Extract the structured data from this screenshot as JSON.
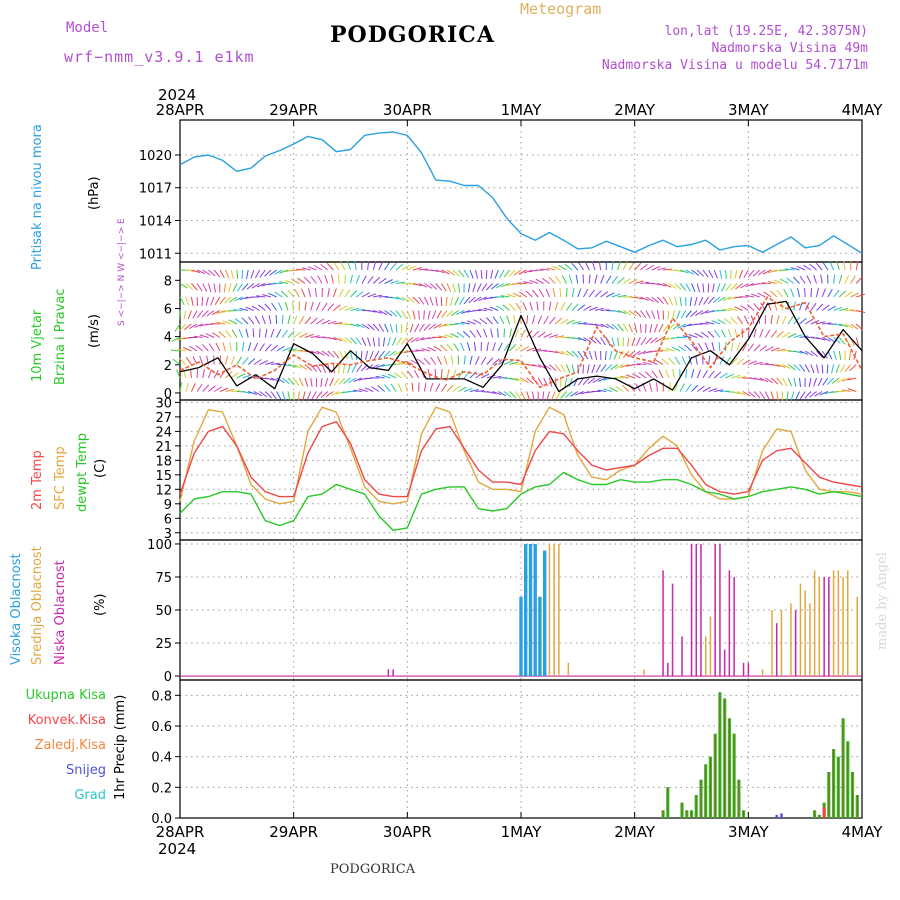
{
  "header": {
    "model_label": "Model",
    "model_name": "wrf−nmm_v3.9.1  e1km",
    "station": "PODGORICA",
    "meteogram": "Meteogram",
    "lonlat": "lon,lat (19.25E, 42.3875N)",
    "elev": "Nadmorska Visina 49m",
    "elev_model": "Nadmorska Visina u modelu 54.7171m",
    "footer_station": "PODGORICA",
    "watermark": "made by Angel"
  },
  "colors": {
    "pressure": "#29a0e0",
    "temp2m": "#f04848",
    "sfc": "#e0a840",
    "dewpt": "#28c828",
    "high_cloud": "#29a0e0",
    "mid_cloud": "#e0a840",
    "low_cloud": "#c828a8",
    "precip_total": "#28c828",
    "precip_conv": "#f04848",
    "zaledj": "#f08840",
    "snijeg": "#5050e0",
    "grad": "#28c8c8",
    "wind_speed": "#f06030",
    "wind_gust": "#000000"
  },
  "axes": {
    "year_top": "2024",
    "year_bottom": "2024",
    "date_labels": [
      "28APR",
      "29APR",
      "30APR",
      "1MAY",
      "2MAY",
      "3MAY",
      "4MAY"
    ]
  },
  "panels": {
    "pressure": {
      "label": "Pritisak na nivou mora",
      "unit": "(hPa)"
    },
    "wind": {
      "label1": "10m Vjetar",
      "label2": "Brzina i Pravac",
      "unit": "(m/s)",
      "compass": "S <−|−> N  W <−|−> E"
    },
    "temp": {
      "label1": "2m Temp",
      "label2": "SFC Temp",
      "label3": "dewpt Temp",
      "unit": "(C)"
    },
    "cloud": {
      "label1": "Visoka Oblacnost",
      "label2": "Srednja Oblacnost",
      "label3": "Niska Oblacnost",
      "unit": "(%)"
    },
    "precip": {
      "labels": [
        "Ukupna Kisa",
        "Konvek.Kisa",
        "Zaledj.Kisa",
        "Snijeg",
        "Grad"
      ],
      "unit": "1hr Precip (mm)"
    }
  },
  "chart_data": [
    {
      "type": "line",
      "title": "",
      "ylabel": "Pritisak na nivou mora (hPa)",
      "ylim": [
        1010.2,
        1023.2
      ],
      "yticks": [
        1011,
        1014,
        1017,
        1020
      ],
      "x_hours": [
        0,
        3,
        6,
        9,
        12,
        15,
        18,
        21,
        24,
        27,
        30,
        33,
        36,
        39,
        42,
        45,
        48,
        51,
        54,
        57,
        60,
        63,
        66,
        69,
        72,
        75,
        78,
        81,
        84,
        87,
        90,
        93,
        96,
        99,
        102,
        105,
        108,
        111,
        114,
        117,
        120,
        123,
        126,
        129,
        132,
        135,
        138,
        141,
        144
      ],
      "series": [
        {
          "name": "Pritisak na nivou mora",
          "values": [
            1019.1,
            1019.8,
            1020.0,
            1019.5,
            1018.5,
            1018.8,
            1019.9,
            1020.4,
            1021.0,
            1021.7,
            1021.4,
            1020.3,
            1020.5,
            1021.8,
            1022.0,
            1022.1,
            1021.8,
            1020.2,
            1017.7,
            1017.6,
            1017.2,
            1017.2,
            1016.1,
            1014.2,
            1012.8,
            1012.2,
            1012.9,
            1012.2,
            1011.4,
            1011.5,
            1012.1,
            1011.6,
            1011.1,
            1011.7,
            1012.2,
            1011.6,
            1011.8,
            1012.2,
            1011.3,
            1011.6,
            1011.7,
            1011.1,
            1011.8,
            1012.5,
            1011.5,
            1011.7,
            1012.6,
            1011.8,
            1011.0
          ]
        }
      ]
    },
    {
      "type": "line",
      "title": "",
      "ylabel": "10m Vjetar Brzina i Pravac (m/s)",
      "ylim": [
        -0.5,
        9.3
      ],
      "yticks": [
        0,
        2,
        4,
        6,
        8
      ],
      "x_hours": [
        0,
        4,
        8,
        12,
        16,
        20,
        24,
        28,
        32,
        36,
        40,
        44,
        48,
        52,
        56,
        60,
        64,
        68,
        72,
        76,
        80,
        84,
        88,
        92,
        96,
        100,
        104,
        108,
        112,
        116,
        120,
        124,
        128,
        132,
        136,
        140,
        144
      ],
      "series": [
        {
          "name": "speed",
          "values": [
            1.6,
            2.2,
            1.3,
            2.0,
            1.0,
            1.6,
            2.7,
            1.9,
            2.1,
            2.0,
            2.3,
            2.5,
            2.1,
            1.4,
            0.9,
            1.5,
            1.3,
            2.4,
            2.3,
            0.4,
            1.0,
            1.5,
            4.7,
            3.0,
            2.5,
            2.2,
            5.3,
            3.7,
            1.8,
            3.6,
            4.6,
            6.8,
            6.0,
            6.4,
            4.0,
            4.2,
            1.6
          ]
        },
        {
          "name": "gust",
          "values": [
            1.5,
            1.8,
            2.5,
            0.5,
            1.3,
            0.3,
            3.5,
            2.8,
            1.5,
            3.0,
            1.8,
            1.6,
            3.5,
            1.0,
            1.0,
            1.0,
            0.4,
            2.0,
            5.5,
            2.5,
            0.1,
            1.0,
            1.2,
            1.0,
            0.3,
            1.0,
            0.2,
            2.5,
            3.0,
            2.0,
            3.8,
            6.3,
            6.5,
            4.0,
            2.5,
            4.5,
            3.0
          ]
        }
      ]
    },
    {
      "type": "line",
      "title": "",
      "ylabel": "Temp (C)",
      "ylim": [
        1.5,
        30.5
      ],
      "yticks": [
        3,
        6,
        9,
        12,
        15,
        18,
        21,
        24,
        27,
        30
      ],
      "x_hours": [
        0,
        3,
        6,
        9,
        12,
        15,
        18,
        21,
        24,
        27,
        30,
        33,
        36,
        39,
        42,
        45,
        48,
        51,
        54,
        57,
        60,
        63,
        66,
        69,
        72,
        75,
        78,
        81,
        84,
        87,
        90,
        93,
        96,
        99,
        102,
        105,
        108,
        111,
        114,
        117,
        120,
        123,
        126,
        129,
        132,
        135,
        138,
        141,
        144
      ],
      "series": [
        {
          "name": "2m Temp",
          "values": [
            11.0,
            19.5,
            24.0,
            25.0,
            21.0,
            14.5,
            11.5,
            10.5,
            10.5,
            19.5,
            25.0,
            26.0,
            21.5,
            14.0,
            11.0,
            10.5,
            10.5,
            20.0,
            24.5,
            25.0,
            20.5,
            16.0,
            13.5,
            13.5,
            13.0,
            20.0,
            24.0,
            23.5,
            20.0,
            17.0,
            16.0,
            16.5,
            17.0,
            19.0,
            20.5,
            20.5,
            17.0,
            13.0,
            11.5,
            11.0,
            11.5,
            18.0,
            20.0,
            20.5,
            17.5,
            14.5,
            13.5,
            13.0,
            12.5
          ]
        },
        {
          "name": "SFC Temp",
          "values": [
            9.5,
            22.0,
            28.5,
            28.0,
            21.0,
            13.0,
            10.0,
            9.0,
            9.5,
            24.0,
            29.0,
            28.0,
            20.5,
            12.5,
            9.5,
            9.0,
            9.5,
            23.5,
            29.0,
            28.0,
            20.0,
            13.5,
            12.0,
            12.0,
            11.5,
            24.0,
            29.0,
            27.5,
            19.0,
            14.5,
            14.0,
            16.0,
            17.0,
            20.5,
            23.0,
            21.0,
            15.0,
            11.5,
            10.0,
            10.0,
            10.5,
            20.0,
            24.5,
            24.0,
            16.0,
            12.0,
            11.5,
            11.5,
            11.0
          ]
        },
        {
          "name": "dewpt Temp",
          "values": [
            7.0,
            10.0,
            10.5,
            11.5,
            11.5,
            11.0,
            5.5,
            4.5,
            5.5,
            10.5,
            11.0,
            13.0,
            12.0,
            11.0,
            6.5,
            3.5,
            4.0,
            11.0,
            12.0,
            12.5,
            12.5,
            8.0,
            7.5,
            8.0,
            11.0,
            12.5,
            13.0,
            15.5,
            14.0,
            13.0,
            13.0,
            14.0,
            13.5,
            13.5,
            14.0,
            14.0,
            13.0,
            11.5,
            11.0,
            10.0,
            10.5,
            11.5,
            12.0,
            12.5,
            12.0,
            11.0,
            11.5,
            11.0,
            10.5
          ]
        }
      ]
    },
    {
      "type": "bar",
      "title": "",
      "ylabel": "Oblacnost (%)",
      "ylim": [
        -3,
        103
      ],
      "yticks": [
        0,
        25,
        50,
        75,
        100
      ],
      "series": [
        {
          "name": "Visoka Oblacnost",
          "x_hours": [
            72,
            73,
            74,
            75,
            76,
            77
          ],
          "values": [
            60,
            100,
            100,
            100,
            60,
            95
          ]
        },
        {
          "name": "Srednja Oblacnost",
          "x_hours": [
            78,
            79,
            80,
            82,
            98,
            111,
            112,
            123,
            125,
            127,
            129,
            130,
            131,
            132,
            133,
            134,
            135,
            137,
            138,
            139,
            140,
            141,
            143
          ],
          "values": [
            100,
            100,
            100,
            10,
            5,
            30,
            45,
            5,
            50,
            50,
            55,
            45,
            70,
            65,
            55,
            80,
            75,
            70,
            80,
            80,
            75,
            80,
            60
          ]
        },
        {
          "name": "Niska Oblacnost",
          "x_hours": [
            44,
            45,
            102,
            103,
            104,
            106,
            108,
            109,
            110,
            113,
            114,
            115,
            116,
            117,
            119,
            120,
            126,
            130,
            136,
            137
          ],
          "values": [
            5,
            5,
            80,
            10,
            70,
            30,
            100,
            100,
            100,
            100,
            100,
            20,
            80,
            75,
            10,
            10,
            40,
            50,
            75,
            75
          ]
        }
      ]
    },
    {
      "type": "bar",
      "title": "",
      "ylabel": "1hr Precip (mm)",
      "ylim": [
        0,
        0.9
      ],
      "yticks": [
        0,
        0.2,
        0.4,
        0.6,
        0.8
      ],
      "series": [
        {
          "name": "Ukupna Kisa",
          "x_hours": [
            102,
            103,
            106,
            107,
            108,
            109,
            110,
            111,
            112,
            113,
            114,
            115,
            116,
            117,
            118,
            119,
            134,
            135,
            136,
            137,
            138,
            139,
            140,
            141,
            142,
            143
          ],
          "values": [
            0.05,
            0.2,
            0.1,
            0.05,
            0.05,
            0.15,
            0.25,
            0.35,
            0.4,
            0.55,
            0.82,
            0.78,
            0.65,
            0.55,
            0.25,
            0.05,
            0.05,
            0.02,
            0.1,
            0.3,
            0.45,
            0.4,
            0.65,
            0.5,
            0.3,
            0.15
          ]
        },
        {
          "name": "Konvek.Kisa",
          "x_hours": [
            136
          ],
          "values": [
            0.07
          ]
        },
        {
          "name": "Snijeg",
          "x_hours": [
            126,
            127
          ],
          "values": [
            0.02,
            0.03
          ]
        }
      ]
    }
  ]
}
